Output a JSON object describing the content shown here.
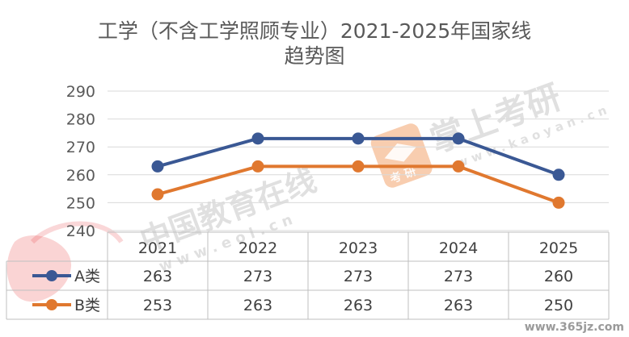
{
  "chart_data": {
    "type": "line",
    "title_line1": "工学（不含工学照顾专业）2021-2025年国家线",
    "title_line2": "趋势图",
    "categories": [
      "2021",
      "2022",
      "2023",
      "2024",
      "2025"
    ],
    "ylim": [
      240,
      290
    ],
    "yticks": [
      240,
      250,
      260,
      270,
      280,
      290
    ],
    "grid": true,
    "legend": "data-table-left",
    "series": [
      {
        "name": "A类",
        "values": [
          263,
          273,
          273,
          273,
          260
        ],
        "color": "#3a5894"
      },
      {
        "name": "B类",
        "values": [
          253,
          263,
          263,
          263,
          250
        ],
        "color": "#e0782f"
      }
    ]
  },
  "watermarks": {
    "brand_top": "掌上考研",
    "brand_top_url": "w w w . k a o y a n . c n",
    "brand_badge": "考 研",
    "brand_mid": "中国教育在线",
    "brand_mid_url": "w w w . e o l . c n",
    "brand_bottom": "www.365jz.com",
    "colors": {
      "brand_orange": "#f2a46e",
      "brand_red": "#e8393a"
    }
  }
}
